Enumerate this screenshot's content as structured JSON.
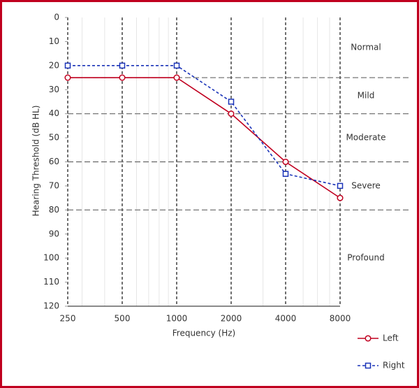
{
  "chart_data": {
    "type": "line",
    "xlabel": "Frequency (Hz)",
    "ylabel": "Hearing Threshold (dB HL)",
    "x": [
      250,
      500,
      1000,
      2000,
      4000,
      8000
    ],
    "xscale": "log",
    "xlim": [
      250,
      8000
    ],
    "xticks": [
      250,
      500,
      1000,
      2000,
      4000,
      8000
    ],
    "ylim": [
      0,
      120
    ],
    "yinverted": true,
    "yticks": [
      0,
      10,
      20,
      30,
      40,
      50,
      60,
      70,
      80,
      90,
      100,
      110,
      120
    ],
    "minor_grid": true,
    "severity_lines": [
      25,
      40,
      60,
      80
    ],
    "severity_labels": [
      "Normal",
      "Mild",
      "Moderate",
      "Severe",
      "Profound"
    ],
    "legend": "lower right",
    "series": [
      {
        "name": "Left",
        "color": "#c0001f",
        "marker": "circle",
        "dashed": false,
        "values": [
          25,
          25,
          25,
          40,
          60,
          75
        ]
      },
      {
        "name": "Right",
        "color": "#1a33b8",
        "marker": "square",
        "dashed": true,
        "values": [
          20,
          20,
          20,
          35,
          65,
          70
        ]
      }
    ]
  }
}
